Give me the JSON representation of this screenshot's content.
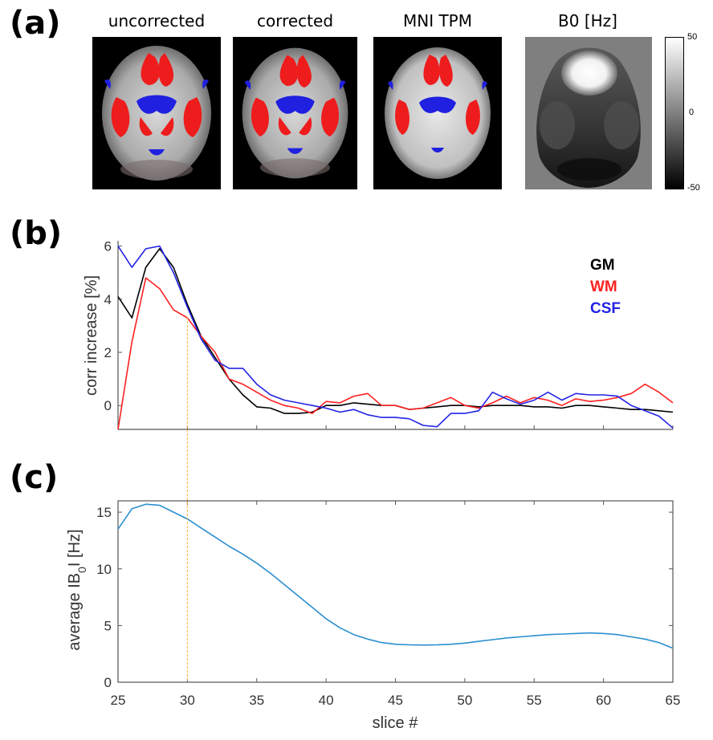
{
  "panels": {
    "a": "(a)",
    "b": "(b)",
    "c": "(c)"
  },
  "images": {
    "titles": [
      "uncorrected",
      "corrected",
      "MNI TPM",
      "B0 [Hz]"
    ],
    "colorbar": {
      "max_label": "50",
      "mid_label": "0",
      "min_label": "-50"
    }
  },
  "colors": {
    "GM": "#000000",
    "WM": "#ff2020",
    "CSF": "#2323e6",
    "B0": "#2a8fd0",
    "guide": "#f0b040"
  },
  "chart_data": [
    {
      "type": "line",
      "id": "b",
      "title": "",
      "xlabel": "",
      "ylabel": "corr increase [%]",
      "xlim": [
        25,
        65
      ],
      "ylim": [
        -0.9,
        6.2
      ],
      "yticks": [
        0,
        2,
        4,
        6
      ],
      "xticks": [
        25,
        30,
        35,
        40,
        45,
        50,
        55,
        60,
        65
      ],
      "legend": [
        "GM",
        "WM",
        "CSF"
      ],
      "legend_position": "top-right",
      "series": [
        {
          "name": "GM",
          "x": [
            25,
            26,
            27,
            28,
            29,
            30,
            31,
            32,
            33,
            34,
            35,
            36,
            37,
            38,
            39,
            40,
            41,
            42,
            43,
            44,
            45,
            46,
            47,
            48,
            49,
            50,
            51,
            52,
            53,
            54,
            55,
            56,
            57,
            58,
            59,
            60,
            61,
            62,
            63,
            64,
            65
          ],
          "values": [
            4.1,
            3.3,
            5.2,
            5.9,
            5.2,
            3.8,
            2.6,
            1.8,
            1.0,
            0.4,
            -0.05,
            -0.1,
            -0.3,
            -0.3,
            -0.25,
            0.0,
            0.0,
            0.1,
            0.05,
            0.0,
            0.0,
            -0.15,
            -0.1,
            -0.05,
            0.0,
            0.0,
            -0.05,
            0.0,
            0.0,
            0.0,
            -0.05,
            -0.05,
            -0.1,
            0.0,
            0.0,
            -0.05,
            -0.1,
            -0.15,
            -0.15,
            -0.2,
            -0.25
          ]
        },
        {
          "name": "WM",
          "x": [
            25,
            26,
            27,
            28,
            29,
            30,
            31,
            32,
            33,
            34,
            35,
            36,
            37,
            38,
            39,
            40,
            41,
            42,
            43,
            44,
            45,
            46,
            47,
            48,
            49,
            50,
            51,
            52,
            53,
            54,
            55,
            56,
            57,
            58,
            59,
            60,
            61,
            62,
            63,
            64,
            65
          ],
          "values": [
            -0.9,
            2.4,
            4.8,
            4.4,
            3.6,
            3.3,
            2.6,
            2.0,
            1.0,
            0.8,
            0.5,
            0.2,
            0.0,
            -0.1,
            -0.3,
            0.15,
            0.1,
            0.35,
            0.45,
            0.0,
            0.0,
            -0.15,
            -0.1,
            0.1,
            0.3,
            0.0,
            -0.1,
            0.1,
            0.35,
            0.1,
            0.3,
            0.2,
            0.0,
            0.25,
            0.15,
            0.2,
            0.3,
            0.45,
            0.8,
            0.5,
            0.1
          ]
        },
        {
          "name": "CSF",
          "x": [
            25,
            26,
            27,
            28,
            29,
            30,
            31,
            32,
            33,
            34,
            35,
            36,
            37,
            38,
            39,
            40,
            41,
            42,
            43,
            44,
            45,
            46,
            47,
            48,
            49,
            50,
            51,
            52,
            53,
            54,
            55,
            56,
            57,
            58,
            59,
            60,
            61,
            62,
            63,
            64,
            65
          ],
          "values": [
            6.0,
            5.2,
            5.9,
            6.0,
            5.0,
            3.7,
            2.5,
            1.7,
            1.4,
            1.4,
            0.8,
            0.4,
            0.2,
            0.1,
            0.0,
            -0.1,
            -0.25,
            -0.15,
            -0.35,
            -0.45,
            -0.45,
            -0.5,
            -0.75,
            -0.8,
            -0.3,
            -0.3,
            -0.2,
            0.5,
            0.25,
            0.05,
            0.2,
            0.5,
            0.2,
            0.45,
            0.4,
            0.4,
            0.35,
            0.0,
            -0.2,
            -0.4,
            -0.85
          ]
        }
      ]
    },
    {
      "type": "line",
      "id": "c",
      "title": "",
      "xlabel": "slice #",
      "ylabel": "average IB0I [Hz]",
      "ylabel_parts": {
        "pre": "average IB",
        "sub": "0",
        "post": "I  [Hz]"
      },
      "xlim": [
        25,
        65
      ],
      "ylim": [
        0,
        16
      ],
      "yticks": [
        0,
        5,
        10,
        15
      ],
      "xticks": [
        25,
        30,
        35,
        40,
        45,
        50,
        55,
        60,
        65
      ],
      "series": [
        {
          "name": "B0",
          "x": [
            25,
            26,
            27,
            28,
            29,
            30,
            31,
            32,
            33,
            34,
            35,
            36,
            37,
            38,
            39,
            40,
            41,
            42,
            43,
            44,
            45,
            46,
            47,
            48,
            49,
            50,
            51,
            52,
            53,
            54,
            55,
            56,
            57,
            58,
            59,
            60,
            61,
            62,
            63,
            64,
            65
          ],
          "values": [
            13.5,
            15.3,
            15.7,
            15.6,
            15.0,
            14.4,
            13.6,
            12.8,
            12.0,
            11.3,
            10.5,
            9.6,
            8.6,
            7.6,
            6.6,
            5.6,
            4.8,
            4.2,
            3.8,
            3.5,
            3.35,
            3.3,
            3.28,
            3.3,
            3.35,
            3.45,
            3.6,
            3.75,
            3.9,
            4.0,
            4.1,
            4.2,
            4.25,
            4.3,
            4.35,
            4.3,
            4.2,
            4.0,
            3.8,
            3.5,
            3.0
          ]
        }
      ]
    }
  ],
  "guide_line_x": 30
}
